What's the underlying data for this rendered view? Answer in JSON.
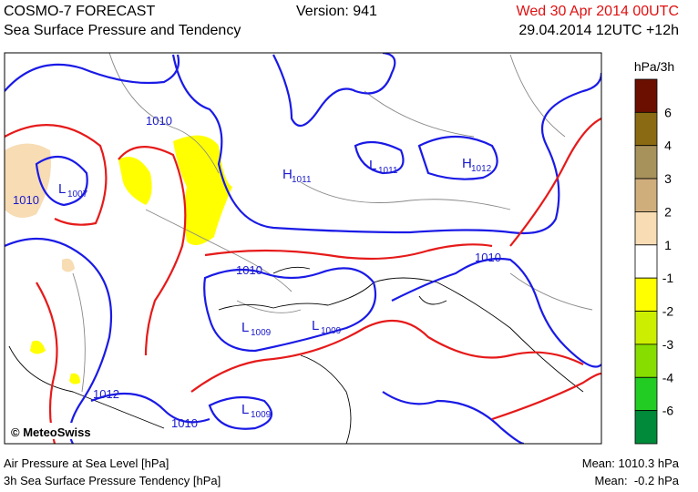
{
  "header": {
    "title": "COSMO-7 FORECAST",
    "subtitle": "Sea Surface Pressure and Tendency",
    "version": "Version: 941",
    "valid_time": "Wed 30 Apr 2014 00UTC",
    "run_time": "29.04.2014 12UTC +12h"
  },
  "map": {
    "copyright": "© MeteoSwiss",
    "labels": [
      {
        "symbol": null,
        "value": "1010"
      },
      {
        "symbol": null,
        "value": "1010"
      },
      {
        "symbol": "L",
        "value": "1007"
      },
      {
        "symbol": "H",
        "value": "1011"
      },
      {
        "symbol": "L",
        "value": "1011"
      },
      {
        "symbol": "H",
        "value": "1012"
      },
      {
        "symbol": null,
        "value": "1010"
      },
      {
        "symbol": null,
        "value": "1010"
      },
      {
        "symbol": "L",
        "value": "1009"
      },
      {
        "symbol": "L",
        "value": "1009"
      },
      {
        "symbol": null,
        "value": "1012"
      },
      {
        "symbol": "L",
        "value": "1009"
      },
      {
        "symbol": null,
        "value": "1010"
      }
    ]
  },
  "legend": {
    "unit": "hPa/3h",
    "levels": [
      6,
      4,
      3,
      2,
      1,
      -1,
      -2,
      -3,
      -4,
      -6
    ],
    "colors": [
      "#6b1000",
      "#8a6a12",
      "#a8925c",
      "#cfae7c",
      "#f7dcb4",
      "#ffffff",
      "#ffff00",
      "#ccee00",
      "#88dd00",
      "#22cc22",
      "#008a3a"
    ]
  },
  "footer": {
    "left": [
      "Air Pressure at Sea Level [hPa]",
      "3h Sea Surface Pressure Tendency [hPa]"
    ],
    "right": [
      "Mean: 1010.3 hPa",
      "Mean:  -0.2 hPa"
    ]
  }
}
